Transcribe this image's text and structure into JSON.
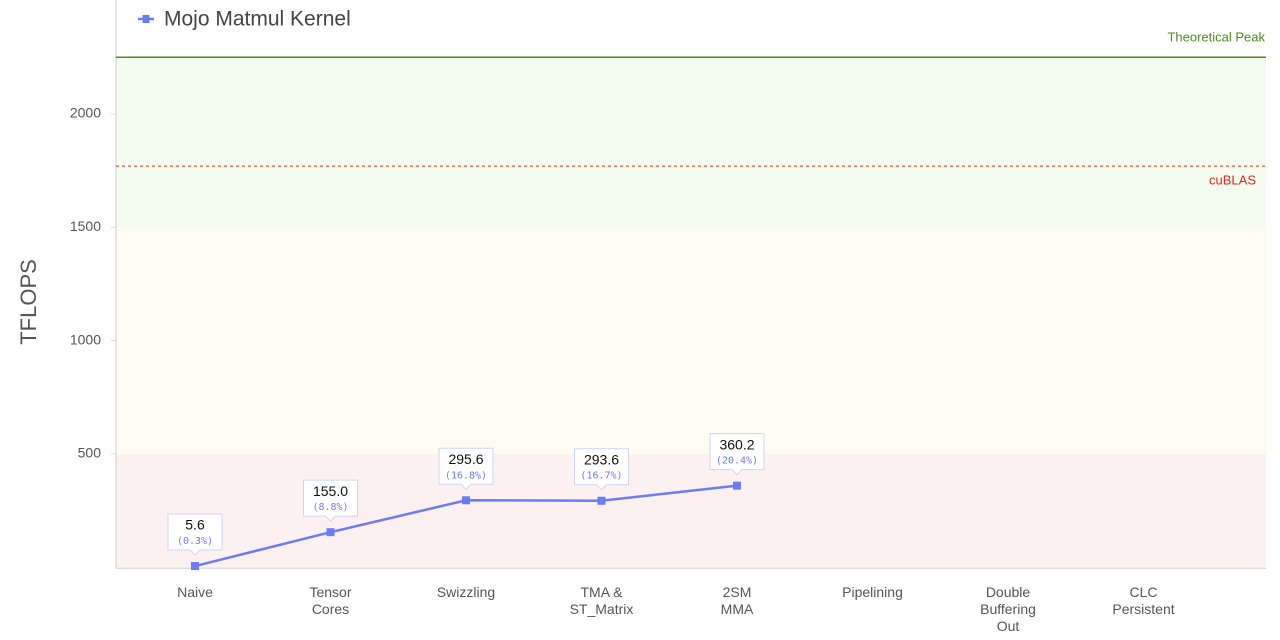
{
  "chart_data": {
    "type": "line",
    "y_label": "TFLOPS",
    "categories": [
      "Naive",
      "Tensor\nCores",
      "Swizzling",
      "TMA &\nST_Matrix",
      "2SM\nMMA",
      "Pipelining",
      "Double\nBuffering\nOut",
      "CLC\nPersistent"
    ],
    "series": [
      {
        "name": "Mojo Matmul Kernel",
        "color": "#6b7cf6",
        "values": [
          5.6,
          155.0,
          295.6,
          293.6,
          360.2,
          null,
          null,
          null
        ],
        "value_labels": [
          "5.6",
          "155.0",
          "295.6",
          "293.6",
          "360.2",
          null,
          null,
          null
        ],
        "percent_labels": [
          "(0.3%)",
          "(8.8%)",
          "(16.8%)",
          "(16.7%)",
          "(20.4%)",
          null,
          null,
          null
        ]
      }
    ],
    "ylim": [
      0,
      2500
    ],
    "yticks": [
      500,
      1000,
      1500,
      2000
    ],
    "bands": [
      {
        "from": 0,
        "to": 500,
        "color": "#fdf0f1"
      },
      {
        "from": 500,
        "to": 1500,
        "color": "#fefcf0"
      },
      {
        "from": 1500,
        "to": 2250,
        "color": "#f4fbef"
      }
    ],
    "reference_lines": [
      {
        "label": "Theoretical Peak",
        "value": 2250,
        "color": "#4d8c1f",
        "style": "solid"
      },
      {
        "label": "cuBLAS",
        "value": 1770,
        "color": "#e0281e",
        "style": "dashed"
      }
    ]
  }
}
